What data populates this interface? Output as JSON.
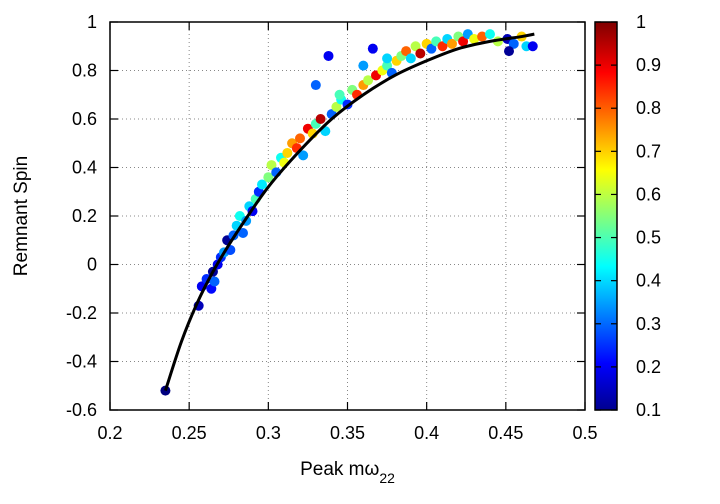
{
  "chart_data": {
    "type": "scatter",
    "title": "",
    "xlabel": "Peak mω",
    "xlabel_sub": "22",
    "ylabel": "Remnant Spin",
    "xlim": [
      0.2,
      0.5
    ],
    "ylim": [
      -0.6,
      1.0
    ],
    "xticks": [
      "0.2",
      "0.25",
      "0.3",
      "0.35",
      "0.4",
      "0.45",
      "0.5"
    ],
    "yticks": [
      "-0.6",
      "-0.4",
      "-0.2",
      "0",
      "0.2",
      "0.4",
      "0.6",
      "0.8",
      "1"
    ],
    "grid": true,
    "colorbar": {
      "range": [
        0.1,
        1.0
      ],
      "ticks": [
        "0.1",
        "0.2",
        "0.3",
        "0.4",
        "0.5",
        "0.6",
        "0.7",
        "0.8",
        "0.9",
        "1"
      ],
      "colormap": "jet"
    },
    "fit_curve": [
      [
        0.235,
        -0.52
      ],
      [
        0.245,
        -0.32
      ],
      [
        0.255,
        -0.16
      ],
      [
        0.265,
        -0.03
      ],
      [
        0.275,
        0.08
      ],
      [
        0.285,
        0.18
      ],
      [
        0.3,
        0.32
      ],
      [
        0.32,
        0.47
      ],
      [
        0.34,
        0.6
      ],
      [
        0.36,
        0.7
      ],
      [
        0.38,
        0.78
      ],
      [
        0.4,
        0.84
      ],
      [
        0.42,
        0.89
      ],
      [
        0.44,
        0.92
      ],
      [
        0.46,
        0.94
      ],
      [
        0.468,
        0.95
      ]
    ],
    "points": [
      [
        0.235,
        -0.52,
        0.1
      ],
      [
        0.256,
        -0.17,
        0.15
      ],
      [
        0.258,
        -0.09,
        0.2
      ],
      [
        0.261,
        -0.06,
        0.25
      ],
      [
        0.264,
        -0.1,
        0.22
      ],
      [
        0.265,
        -0.03,
        0.12
      ],
      [
        0.266,
        -0.07,
        0.3
      ],
      [
        0.268,
        0.0,
        0.2
      ],
      [
        0.27,
        0.03,
        0.25
      ],
      [
        0.272,
        0.05,
        0.35
      ],
      [
        0.274,
        0.1,
        0.12
      ],
      [
        0.276,
        0.06,
        0.28
      ],
      [
        0.278,
        0.12,
        0.3
      ],
      [
        0.28,
        0.16,
        0.4
      ],
      [
        0.282,
        0.2,
        0.45
      ],
      [
        0.284,
        0.13,
        0.3
      ],
      [
        0.286,
        0.18,
        0.35
      ],
      [
        0.288,
        0.24,
        0.4
      ],
      [
        0.29,
        0.22,
        0.2
      ],
      [
        0.292,
        0.27,
        0.5
      ],
      [
        0.294,
        0.3,
        0.25
      ],
      [
        0.296,
        0.33,
        0.42
      ],
      [
        0.3,
        0.36,
        0.55
      ],
      [
        0.302,
        0.41,
        0.6
      ],
      [
        0.305,
        0.38,
        0.3
      ],
      [
        0.308,
        0.44,
        0.45
      ],
      [
        0.31,
        0.42,
        0.65
      ],
      [
        0.312,
        0.46,
        0.7
      ],
      [
        0.315,
        0.5,
        0.75
      ],
      [
        0.318,
        0.48,
        0.85
      ],
      [
        0.32,
        0.52,
        0.8
      ],
      [
        0.322,
        0.45,
        0.35
      ],
      [
        0.325,
        0.56,
        0.9
      ],
      [
        0.328,
        0.54,
        0.7
      ],
      [
        0.33,
        0.58,
        0.5
      ],
      [
        0.333,
        0.6,
        0.95
      ],
      [
        0.336,
        0.55,
        0.4
      ],
      [
        0.338,
        0.86,
        0.2
      ],
      [
        0.34,
        0.62,
        0.3
      ],
      [
        0.343,
        0.65,
        0.6
      ],
      [
        0.346,
        0.68,
        0.45
      ],
      [
        0.35,
        0.66,
        0.25
      ],
      [
        0.353,
        0.72,
        0.55
      ],
      [
        0.356,
        0.7,
        0.85
      ],
      [
        0.36,
        0.74,
        0.75
      ],
      [
        0.363,
        0.76,
        0.6
      ],
      [
        0.366,
        0.89,
        0.2
      ],
      [
        0.368,
        0.78,
        0.9
      ],
      [
        0.372,
        0.8,
        0.65
      ],
      [
        0.375,
        0.82,
        0.5
      ],
      [
        0.378,
        0.79,
        0.3
      ],
      [
        0.381,
        0.84,
        0.7
      ],
      [
        0.384,
        0.86,
        0.55
      ],
      [
        0.387,
        0.88,
        0.8
      ],
      [
        0.39,
        0.85,
        0.4
      ],
      [
        0.393,
        0.9,
        0.6
      ],
      [
        0.396,
        0.87,
        0.95
      ],
      [
        0.4,
        0.91,
        0.7
      ],
      [
        0.403,
        0.89,
        0.3
      ],
      [
        0.406,
        0.92,
        0.5
      ],
      [
        0.41,
        0.9,
        0.85
      ],
      [
        0.413,
        0.93,
        0.4
      ],
      [
        0.416,
        0.91,
        0.75
      ],
      [
        0.42,
        0.94,
        0.55
      ],
      [
        0.423,
        0.92,
        0.9
      ],
      [
        0.426,
        0.95,
        0.35
      ],
      [
        0.43,
        0.93,
        0.65
      ],
      [
        0.435,
        0.94,
        0.8
      ],
      [
        0.44,
        0.95,
        0.45
      ],
      [
        0.445,
        0.92,
        0.6
      ],
      [
        0.451,
        0.93,
        0.15
      ],
      [
        0.455,
        0.91,
        0.3
      ],
      [
        0.46,
        0.94,
        0.7
      ],
      [
        0.463,
        0.9,
        0.4
      ],
      [
        0.467,
        0.9,
        0.2
      ],
      [
        0.452,
        0.88,
        0.12
      ],
      [
        0.33,
        0.74,
        0.3
      ],
      [
        0.345,
        0.7,
        0.5
      ],
      [
        0.36,
        0.82,
        0.35
      ],
      [
        0.375,
        0.85,
        0.4
      ]
    ]
  }
}
